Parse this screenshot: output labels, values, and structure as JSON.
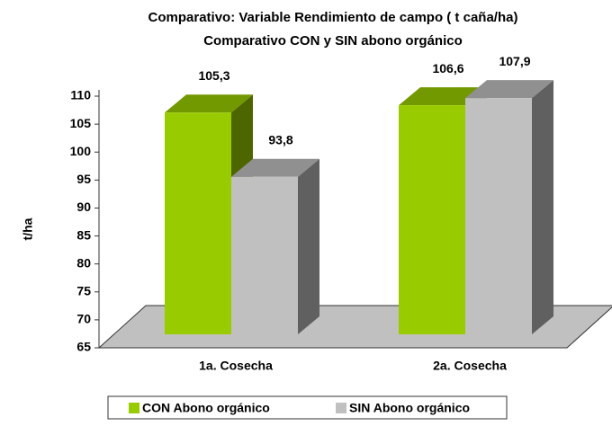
{
  "chart_data": {
    "type": "bar3d",
    "title": "Comparativo: Variable Rendimiento de campo ( t caña/ha)",
    "subtitle": "Comparativo CON y SIN abono orgánico",
    "y_label": "t/ha",
    "categories": [
      "1a. Cosecha",
      "2a. Cosecha"
    ],
    "series": [
      {
        "name": "CON Abono orgánico",
        "color": "#99cc00",
        "values": [
          105.3,
          106.6
        ],
        "value_labels": [
          "105,3",
          "106,6"
        ]
      },
      {
        "name": "SIN Abono orgánico",
        "color": "#c0c0c0",
        "values": [
          93.8,
          107.9
        ],
        "value_labels": [
          "93,8",
          "107,9"
        ]
      }
    ],
    "ylim": [
      65,
      110
    ],
    "yticks": [
      65,
      70,
      75,
      80,
      85,
      90,
      95,
      100,
      105,
      110
    ],
    "legend": "bottom"
  }
}
